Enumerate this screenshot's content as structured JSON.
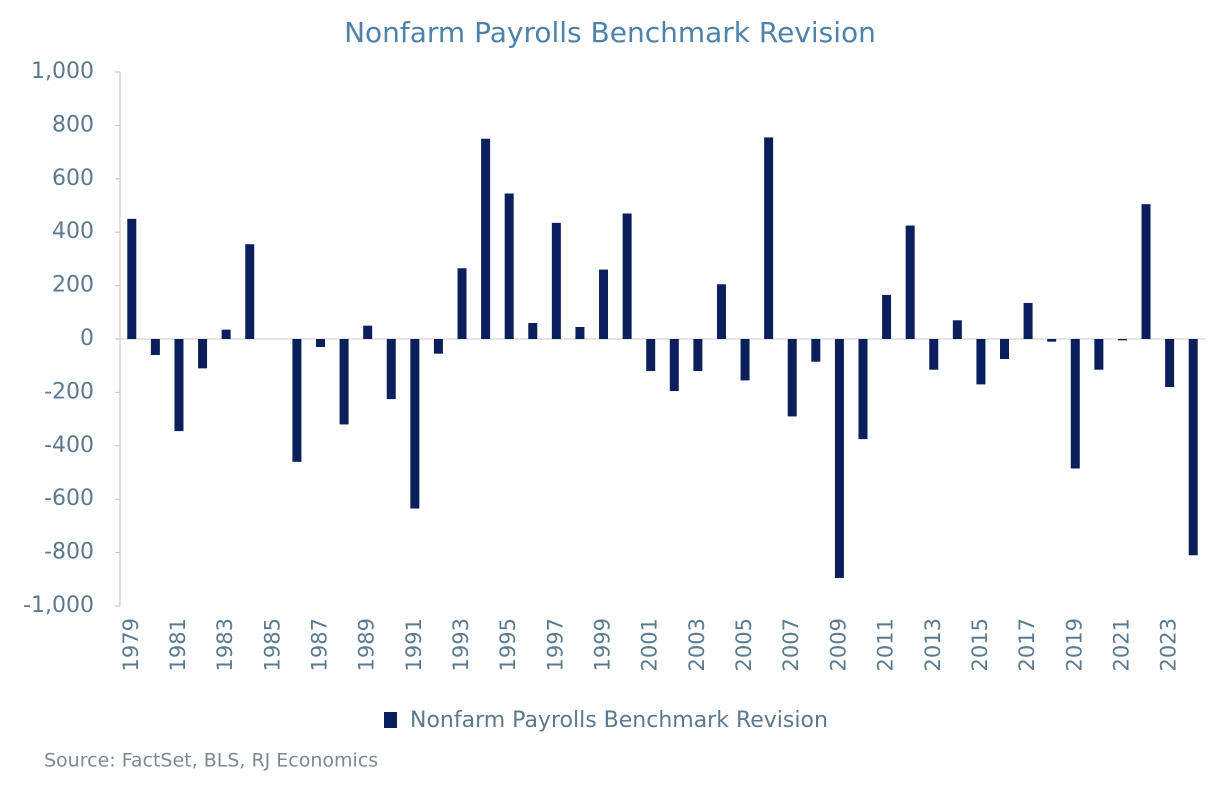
{
  "chart_data": {
    "type": "bar",
    "title": "Nonfarm Payrolls Benchmark Revision",
    "source": "Source: FactSet, BLS,  RJ Economics",
    "categories": [
      "1979",
      null,
      "1981",
      null,
      "1983",
      null,
      "1985",
      null,
      "1987",
      null,
      "1989",
      null,
      "1991",
      null,
      "1993",
      null,
      "1995",
      null,
      "1997",
      null,
      "1999",
      null,
      "2001",
      null,
      "2003",
      null,
      "2005",
      null,
      "2007",
      null,
      "2009",
      null,
      "2011",
      null,
      "2013",
      null,
      "2015",
      null,
      "2017",
      null,
      "2019",
      null,
      "2021",
      null,
      "2023",
      null
    ],
    "series": [
      {
        "name": "Nonfarm Payrolls Benchmark Revision",
        "color": "#0b1f5c",
        "values": [
          450,
          -60,
          -345,
          -110,
          35,
          355,
          0,
          -460,
          -30,
          -320,
          50,
          -225,
          -635,
          -55,
          265,
          750,
          545,
          60,
          435,
          45,
          260,
          470,
          -120,
          -195,
          -120,
          205,
          -155,
          755,
          -290,
          -85,
          -895,
          -375,
          165,
          425,
          -115,
          70,
          -170,
          -75,
          135,
          -10,
          -485,
          -115,
          -5,
          505,
          -180,
          -810
        ]
      }
    ],
    "ylim": [
      -1000,
      1000
    ],
    "yticks": [
      {
        "value": -1000,
        "label": "-1,000"
      },
      -800,
      -600,
      -400,
      -200,
      0,
      200,
      400,
      600,
      800,
      {
        "value": 1000,
        "label": "1,000"
      }
    ],
    "legend": "bottom"
  }
}
